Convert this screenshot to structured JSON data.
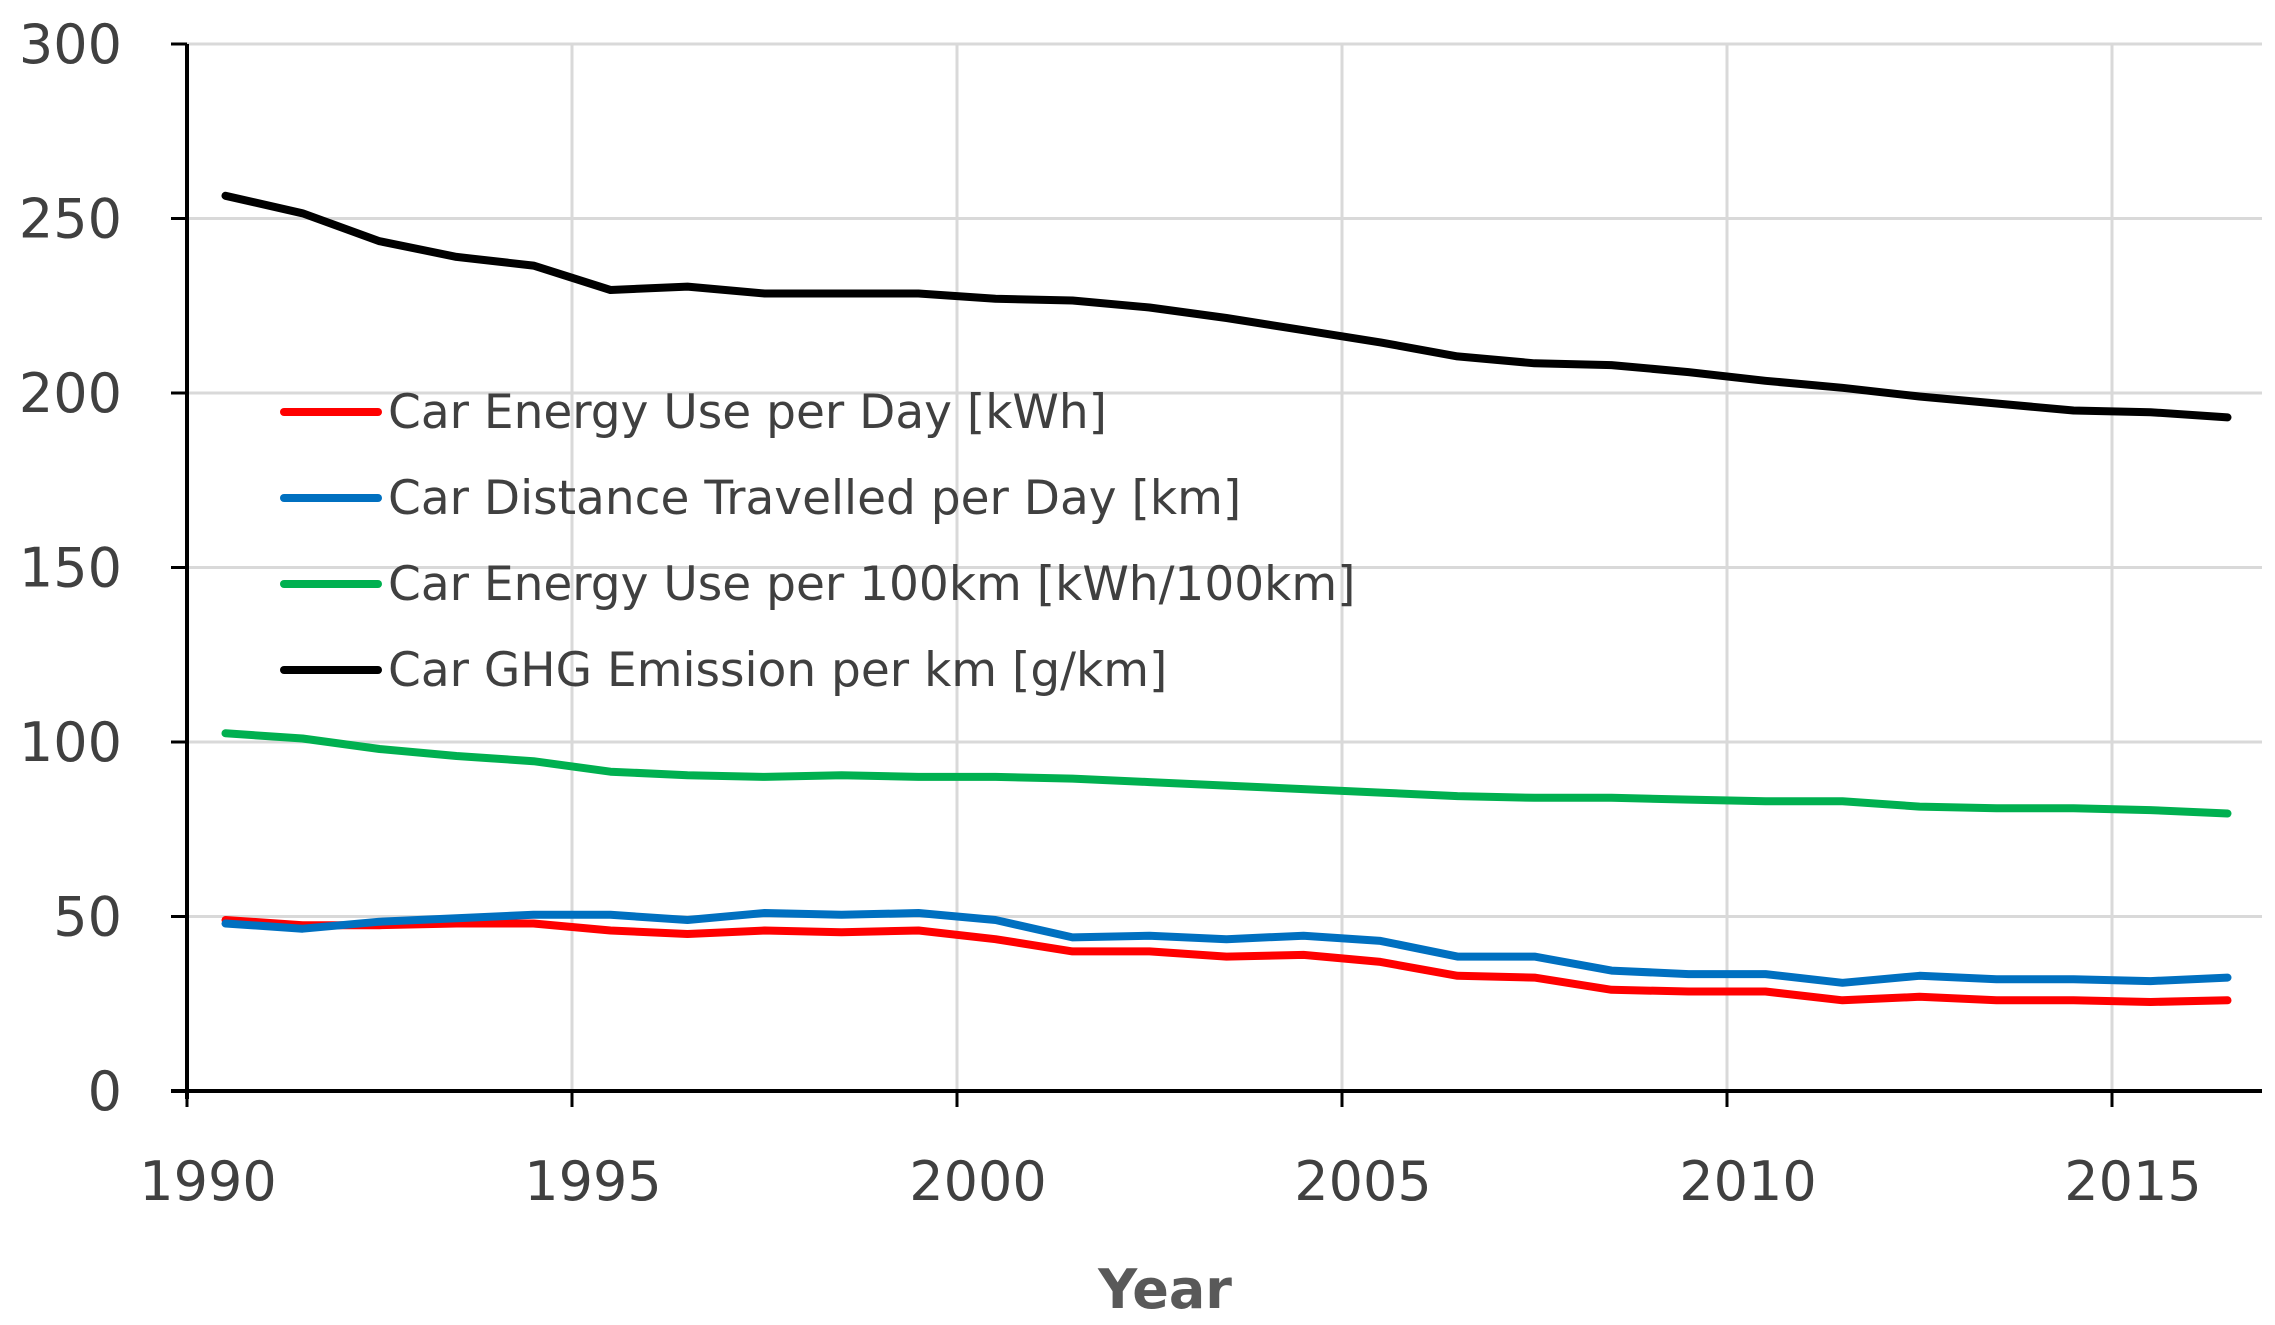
{
  "chart_data": {
    "type": "line",
    "title": "",
    "xlabel": "Year",
    "ylabel": "",
    "xlim": [
      1990,
      2017
    ],
    "ylim": [
      0,
      300
    ],
    "xticks": [
      1990,
      1995,
      2000,
      2005,
      2010,
      2015
    ],
    "yticks": [
      0,
      50,
      100,
      150,
      200,
      250,
      300
    ],
    "grid": true,
    "legend_position": "center-left",
    "x": [
      1990.5,
      1991.5,
      1992.5,
      1993.5,
      1994.5,
      1995.5,
      1996.5,
      1997.5,
      1998.5,
      1999.5,
      2000.5,
      2001.5,
      2002.5,
      2003.5,
      2004.5,
      2005.5,
      2006.5,
      2007.5,
      2008.5,
      2009.5,
      2010.5,
      2011.5,
      2012.5,
      2013.5,
      2014.5,
      2015.5,
      2016.5
    ],
    "series": [
      {
        "name": "Car Energy Use per Day [kWh]",
        "color": "#ff0000",
        "values": [
          49,
          47.5,
          47.5,
          48,
          48,
          46,
          45,
          46,
          45.5,
          46,
          43.5,
          40,
          40,
          38.5,
          39,
          37,
          33,
          32.5,
          29,
          28.5,
          28.5,
          26,
          27,
          26,
          26,
          25.5,
          26
        ]
      },
      {
        "name": "Car Distance Travelled per Day [km]",
        "color": "#0070c0",
        "values": [
          48,
          46.5,
          48.5,
          49.5,
          50.5,
          50.5,
          49,
          51,
          50.5,
          51,
          49,
          44,
          44.5,
          43.5,
          44.5,
          43,
          38.5,
          38.5,
          34.5,
          33.5,
          33.5,
          31,
          33,
          32,
          32,
          31.5,
          32.5
        ]
      },
      {
        "name": "Car Energy Use per 100km [kWh/100km]",
        "color": "#00b050",
        "values": [
          102.5,
          101,
          98,
          96,
          94.5,
          91.5,
          90.5,
          90,
          90.5,
          90,
          90,
          89.5,
          88.5,
          87.5,
          86.5,
          85.5,
          84.5,
          84,
          84,
          83.5,
          83,
          83,
          81.5,
          81,
          81,
          80.5,
          79.5
        ]
      },
      {
        "name": "Car GHG Emission per km [g/km]",
        "color": "#000000",
        "values": [
          256.5,
          251.5,
          243.5,
          239,
          236.5,
          229.5,
          230.5,
          228.5,
          228.5,
          228.5,
          227,
          226.5,
          224.5,
          221.5,
          218,
          214.5,
          210.5,
          208.5,
          208,
          206,
          203.5,
          201.5,
          199,
          197,
          195,
          194.5,
          193
        ]
      }
    ]
  }
}
